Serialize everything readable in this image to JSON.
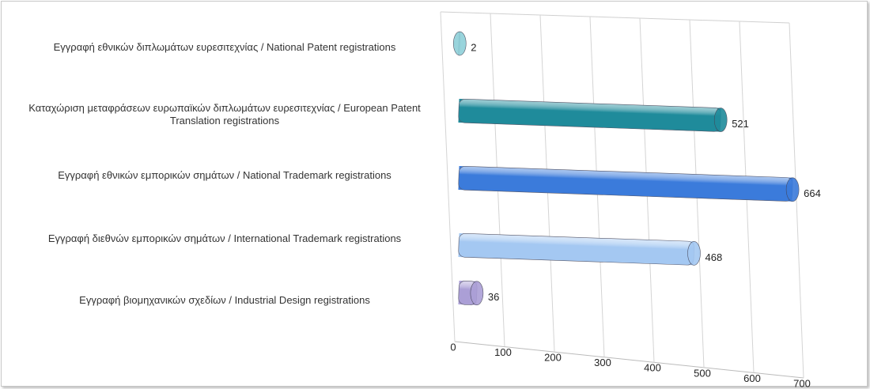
{
  "chart_data": {
    "type": "bar3d",
    "categories": [
      "Εγγραφή  εθνικών διπλωμάτων ευρεσιτεχνίας / National Patent registrations",
      "Καταχώριση μεταφράσεων ευρωπαϊκών διπλωμάτων ευρεσιτεχνίας / European Patent Translation registrations",
      "Εγγραφή  εθνικών εμπορικών σημάτων / National Trademark registrations",
      "Εγγραφή  διεθνών εμπορικών σημάτων / International Trademark registrations",
      "Εγγραφή  βιομηχανικών σχεδίων / Industrial Design registrations"
    ],
    "values": [
      2,
      521,
      664,
      468,
      36
    ],
    "colors": [
      "#8fd0d9",
      "#1f8b9b",
      "#3b7bdb",
      "#a4c8f2",
      "#ab9fd6"
    ],
    "xlim": [
      0,
      700
    ],
    "xticks": [
      0,
      100,
      200,
      300,
      400,
      500,
      600,
      700
    ],
    "grid": true
  }
}
